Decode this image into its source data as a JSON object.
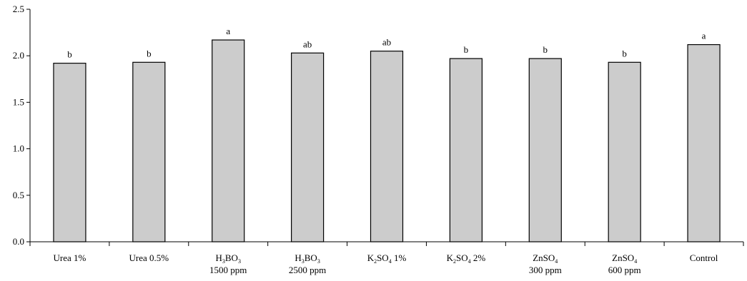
{
  "chart_data": {
    "type": "bar",
    "categories": [
      [
        "Urea 1%"
      ],
      [
        "Urea 0.5%"
      ],
      [
        "H3BO3",
        "1500 ppm"
      ],
      [
        "H3BO3",
        "2500 ppm"
      ],
      [
        "K2SO4 1%"
      ],
      [
        "K2SO4 2%"
      ],
      [
        "ZnSO4",
        "300 ppm"
      ],
      [
        "ZnSO4",
        "600 ppm"
      ],
      [
        "Control"
      ]
    ],
    "values": [
      1.92,
      1.93,
      2.17,
      2.03,
      2.05,
      1.97,
      1.97,
      1.93,
      2.12
    ],
    "bar_labels": [
      "b",
      "b",
      "a",
      "ab",
      "ab",
      "b",
      "b",
      "b",
      "a"
    ],
    "ylim": [
      0,
      2.5
    ],
    "yticks": [
      "0.0",
      "0.5",
      "1.0",
      "1.5",
      "2.0",
      "2.5"
    ],
    "bar_color": "#cccccc",
    "title": "",
    "xlabel": "",
    "ylabel": ""
  }
}
